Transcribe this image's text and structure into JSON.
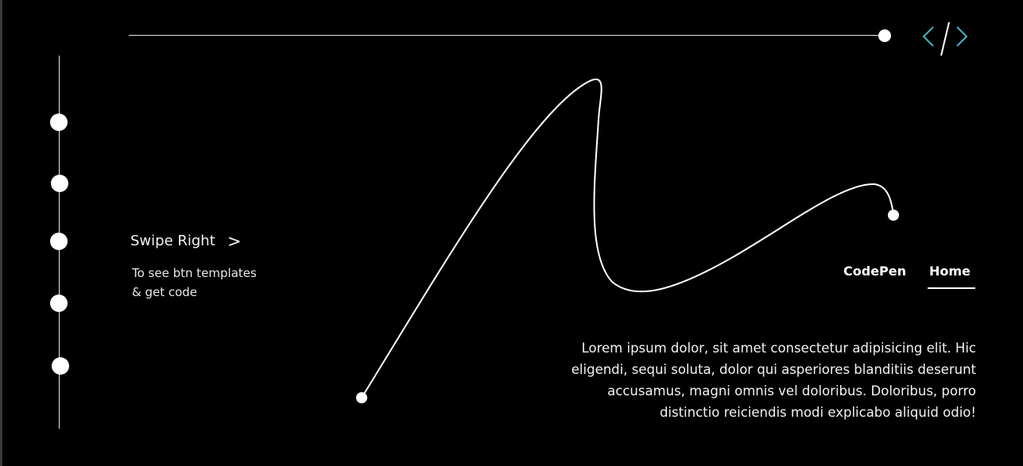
{
  "swipe": {
    "title": "Swipe Right",
    "arrow": ">",
    "subtitle_line1": "To see btn templates",
    "subtitle_line2": "& get  code"
  },
  "nav": {
    "items": [
      {
        "label": "CodePen",
        "active": false
      },
      {
        "label": "Home",
        "active": true
      }
    ]
  },
  "content": {
    "paragraph": "Lorem ipsum dolor, sit amet consectetur adipisicing elit. Hic eligendi, sequi soluta, dolor qui asperiores blanditiis deserunt accusamus, magni omnis vel doloribus. Doloribus, porro distinctio reiciendis modi explicabo aliquid odio!"
  },
  "timeline": {
    "dot_count": 5
  },
  "icons": {
    "logo": "code-brackets-icon"
  },
  "colors": {
    "background": "#000000",
    "foreground": "#ffffff",
    "logo_accent": "#3fb6c2"
  }
}
